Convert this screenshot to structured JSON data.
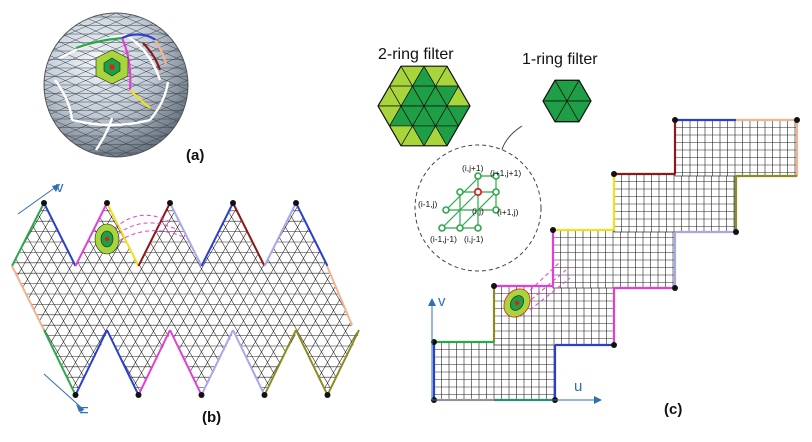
{
  "panels": {
    "a_label": "(a)",
    "b_label": "(b)",
    "c_label": "(c)"
  },
  "filters": {
    "two_ring_title": "2-ring filter",
    "one_ring_title": "1-ring filter"
  },
  "axes": {
    "b_v": "v",
    "b_u": "u",
    "c_v": "v",
    "c_u": "u"
  },
  "neighborhood": {
    "center": "(i,j)",
    "top": "(i,j+1)",
    "top_right": "(i+1,j+1)",
    "left": "(i-1,j)",
    "right": "(i+1,j)",
    "bottom_left": "(i-1,j-1)",
    "bottom": "(i,j-1)"
  },
  "colors": {
    "grid": "#222222",
    "filter_dark": "#1e9e45",
    "filter_light": "#a8d53c",
    "filter_ring2": "#6fbe2c",
    "axis": "#2f6fb2",
    "sphere": "#c9d3de",
    "center_node": "#e02020",
    "edge_green": "#2aa84a",
    "edge_blue": "#2b3fcf",
    "edge_magenta": "#e23fd6",
    "edge_yellow": "#f0e21a",
    "edge_darkred": "#8e1818",
    "edge_lavender": "#a9a6ea",
    "edge_olive": "#8c8c22",
    "edge_peach": "#f2b48e"
  }
}
